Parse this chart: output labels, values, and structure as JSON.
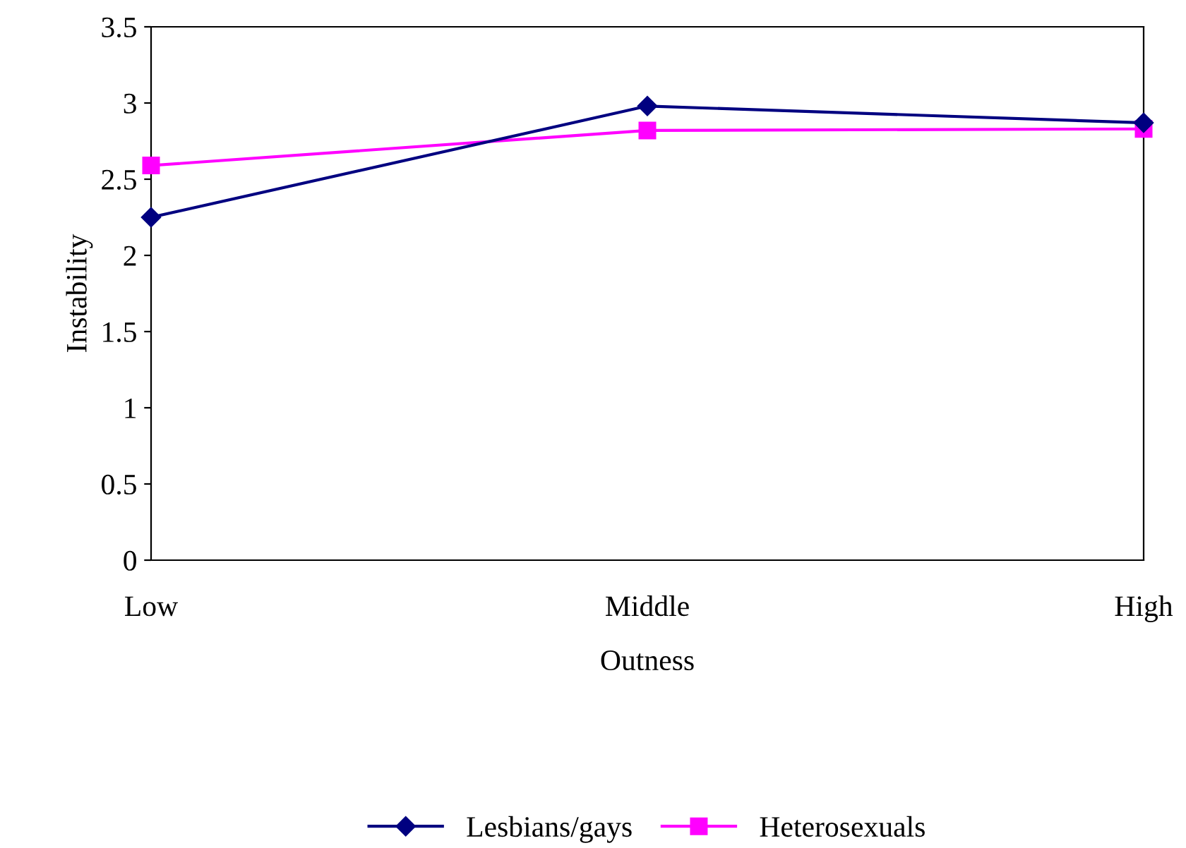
{
  "chart_data": {
    "type": "line",
    "xlabel": "Outness",
    "ylabel": "Instability",
    "categories": [
      "Low",
      "Middle",
      "High"
    ],
    "series": [
      {
        "name": "Lesbians/gays",
        "color": "#000080",
        "values": [
          2.25,
          2.98,
          2.87
        ],
        "marker": "diamond"
      },
      {
        "name": "Heterosexuals",
        "color": "#ff00ff",
        "values": [
          2.59,
          2.82,
          2.83
        ],
        "marker": "square"
      }
    ],
    "ylim": [
      0,
      3.5
    ],
    "yticks": [
      0,
      0.5,
      1,
      1.5,
      2,
      2.5,
      3,
      3.5
    ],
    "grid": false,
    "legend": "bottom",
    "line_style": "solid"
  }
}
